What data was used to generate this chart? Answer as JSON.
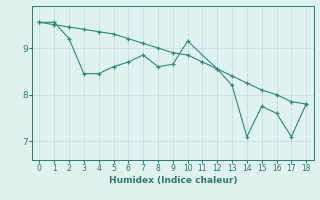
{
  "xlabel": "Humidex (Indice chaleur)",
  "line1_x": [
    0,
    1,
    2,
    3,
    4,
    5,
    6,
    7,
    8,
    9,
    10,
    11,
    12,
    13,
    14,
    15,
    16,
    17,
    18
  ],
  "line1_y": [
    9.55,
    9.5,
    9.45,
    9.4,
    9.35,
    9.3,
    9.2,
    9.1,
    9.0,
    8.9,
    8.85,
    8.7,
    8.55,
    8.4,
    8.25,
    8.1,
    8.0,
    7.85,
    7.8
  ],
  "line2_x": [
    0,
    1,
    2,
    3,
    4,
    5,
    6,
    7,
    8,
    9,
    10,
    12,
    13,
    14,
    15,
    16,
    17,
    18
  ],
  "line2_y": [
    9.55,
    9.55,
    9.2,
    8.45,
    8.45,
    8.6,
    8.7,
    8.85,
    8.6,
    8.65,
    9.15,
    8.55,
    8.2,
    7.1,
    7.75,
    7.6,
    7.1,
    7.8
  ],
  "line_color": "#2e8b74",
  "bg_color": "#dff2ee",
  "grid_color": "#c2ddd8",
  "tick_color": "#2e7b68",
  "yticks": [
    7,
    8,
    9
  ],
  "ylim": [
    6.6,
    9.9
  ],
  "xlim": [
    -0.5,
    18.5
  ],
  "xticks": [
    0,
    1,
    2,
    3,
    4,
    5,
    6,
    7,
    8,
    9,
    10,
    11,
    12,
    13,
    14,
    15,
    16,
    17,
    18
  ]
}
